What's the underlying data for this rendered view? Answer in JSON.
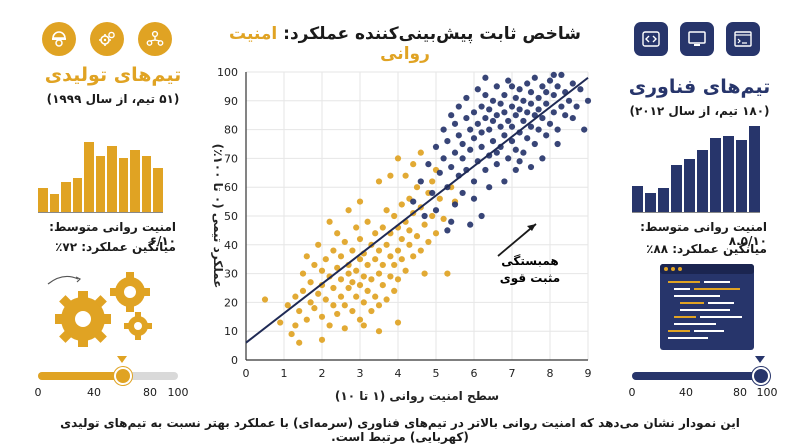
{
  "title": {
    "main": "شاخص ثابت پیش‌بینی‌کننده عملکرد:",
    "accent": "امنیت روانی"
  },
  "left_panel": {
    "team_title": "تیم‌های تولیدی",
    "team_sub": "(۵۱ تیم، از سال ۱۹۹۹)",
    "stat_avg": "امنیت روانی متوسط: ۶/۱۰",
    "stat_perf": "میانگین عملکرد: ۷۲٪",
    "icons": [
      "worker-icon",
      "gears-icon",
      "team-network-icon"
    ],
    "histogram": [
      0.3,
      0.22,
      0.38,
      0.42,
      0.88,
      0.7,
      0.82,
      0.68,
      0.78,
      0.7,
      0.55
    ],
    "slider": {
      "value": 60,
      "ticks": [
        "0",
        "40",
        "80",
        "100"
      ]
    },
    "color": "#e0a323"
  },
  "right_panel": {
    "team_title": "تیم‌های فناوری",
    "team_sub": "(۱۸۰ تیم، از سال ۲۰۱۲)",
    "stat_avg": "امنیت روانی متوسط: ۸.۵/۱۰",
    "stat_perf": "میانگین عملکرد: ۸۸٪",
    "icons": [
      "code-icon",
      "monitor-icon",
      "terminal-icon"
    ],
    "histogram": [
      0.3,
      0.22,
      0.28,
      0.55,
      0.62,
      0.72,
      0.86,
      0.88,
      0.84,
      1.0
    ],
    "slider": {
      "value": 95,
      "ticks": [
        "0",
        "40",
        "80",
        "100"
      ]
    },
    "color": "#27356b"
  },
  "annotation": {
    "line1": "همبستگی",
    "line2": "مثبت قوی"
  },
  "footer": "این نمودار نشان می‌دهد که امنیت روانی بالاتر در تیم‌های فناوری (سرمه‌ای) با عملکرد بهتر نسبت به تیم‌های تولیدی (کهربایی) مرتبط است.",
  "chart_data": {
    "type": "scatter",
    "xlabel": "سطح امنیت روانی (۱ تا ۱۰)",
    "ylabel": "عملکرد تیمی (۰ تا ۱۰۰٪)",
    "xlim": [
      0,
      9
    ],
    "ylim": [
      0,
      100
    ],
    "x_ticks": [
      0,
      1,
      2,
      3,
      4,
      5,
      6,
      7,
      8,
      9
    ],
    "y_ticks": [
      0,
      10,
      20,
      30,
      40,
      50,
      60,
      70,
      80,
      90,
      100
    ],
    "trendline": {
      "x": [
        0,
        9
      ],
      "y": [
        6,
        98
      ]
    },
    "series": [
      {
        "color": "#e0a323",
        "points": [
          [
            0.5,
            21
          ],
          [
            0.9,
            13
          ],
          [
            1.1,
            19
          ],
          [
            1.2,
            9
          ],
          [
            1.3,
            12
          ],
          [
            1.3,
            22
          ],
          [
            1.4,
            17
          ],
          [
            1.5,
            30
          ],
          [
            1.5,
            24
          ],
          [
            1.6,
            14
          ],
          [
            1.6,
            36
          ],
          [
            1.7,
            20
          ],
          [
            1.7,
            27
          ],
          [
            1.8,
            18
          ],
          [
            1.8,
            33
          ],
          [
            1.9,
            23
          ],
          [
            1.9,
            40
          ],
          [
            2.0,
            15
          ],
          [
            2.0,
            26
          ],
          [
            2.0,
            31
          ],
          [
            2.1,
            21
          ],
          [
            2.1,
            35
          ],
          [
            2.2,
            12
          ],
          [
            2.2,
            29
          ],
          [
            2.3,
            19
          ],
          [
            2.3,
            38
          ],
          [
            2.3,
            25
          ],
          [
            2.4,
            16
          ],
          [
            2.4,
            32
          ],
          [
            2.4,
            44
          ],
          [
            2.5,
            22
          ],
          [
            2.5,
            28
          ],
          [
            2.5,
            36
          ],
          [
            2.6,
            11
          ],
          [
            2.6,
            19
          ],
          [
            2.6,
            41
          ],
          [
            2.7,
            25
          ],
          [
            2.7,
            33
          ],
          [
            2.7,
            30
          ],
          [
            2.8,
            17
          ],
          [
            2.8,
            27
          ],
          [
            2.8,
            38
          ],
          [
            2.9,
            22
          ],
          [
            2.9,
            46
          ],
          [
            2.9,
            31
          ],
          [
            3.0,
            14
          ],
          [
            3.0,
            26
          ],
          [
            3.0,
            35
          ],
          [
            3.0,
            42
          ],
          [
            3.1,
            20
          ],
          [
            3.1,
            29
          ],
          [
            3.1,
            37
          ],
          [
            3.2,
            24
          ],
          [
            3.2,
            33
          ],
          [
            3.2,
            48
          ],
          [
            3.3,
            17
          ],
          [
            3.3,
            28
          ],
          [
            3.3,
            40
          ],
          [
            3.4,
            22
          ],
          [
            3.4,
            35
          ],
          [
            3.4,
            44
          ],
          [
            3.5,
            19
          ],
          [
            3.5,
            30
          ],
          [
            3.5,
            38
          ],
          [
            3.6,
            26
          ],
          [
            3.6,
            46
          ],
          [
            3.6,
            33
          ],
          [
            3.7,
            21
          ],
          [
            3.7,
            40
          ],
          [
            3.7,
            52
          ],
          [
            3.8,
            29
          ],
          [
            3.8,
            36
          ],
          [
            3.8,
            44
          ],
          [
            3.9,
            24
          ],
          [
            3.9,
            50
          ],
          [
            3.9,
            33
          ],
          [
            4.0,
            38
          ],
          [
            4.0,
            46
          ],
          [
            4.0,
            28
          ],
          [
            4.1,
            42
          ],
          [
            4.1,
            54
          ],
          [
            4.1,
            35
          ],
          [
            4.2,
            48
          ],
          [
            4.2,
            31
          ],
          [
            4.3,
            40
          ],
          [
            4.3,
            56
          ],
          [
            4.3,
            45
          ],
          [
            4.4,
            36
          ],
          [
            4.4,
            51
          ],
          [
            4.5,
            43
          ],
          [
            4.5,
            60
          ],
          [
            4.6,
            38
          ],
          [
            4.6,
            53
          ],
          [
            4.7,
            47
          ],
          [
            4.7,
            30
          ],
          [
            4.8,
            58
          ],
          [
            4.8,
            41
          ],
          [
            4.9,
            50
          ],
          [
            4.9,
            62
          ],
          [
            5.0,
            44
          ],
          [
            5.1,
            56
          ],
          [
            5.2,
            49
          ],
          [
            5.3,
            30
          ],
          [
            5.4,
            60
          ],
          [
            5.5,
            55
          ],
          [
            4.2,
            64
          ],
          [
            4.0,
            70
          ],
          [
            3.5,
            62
          ],
          [
            3.0,
            55
          ],
          [
            2.2,
            48
          ],
          [
            4.4,
            68
          ],
          [
            5.0,
            66
          ],
          [
            4.6,
            72
          ],
          [
            3.8,
            64
          ],
          [
            2.7,
            52
          ],
          [
            1.4,
            6
          ],
          [
            2.0,
            7
          ],
          [
            3.5,
            10
          ],
          [
            4.0,
            13
          ],
          [
            3.1,
            12
          ]
        ]
      },
      {
        "color": "#27356b",
        "points": [
          [
            4.4,
            55
          ],
          [
            4.6,
            62
          ],
          [
            4.8,
            68
          ],
          [
            4.9,
            58
          ],
          [
            5.0,
            74
          ],
          [
            5.1,
            65
          ],
          [
            5.2,
            80
          ],
          [
            5.2,
            70
          ],
          [
            5.3,
            60
          ],
          [
            5.3,
            76
          ],
          [
            5.4,
            85
          ],
          [
            5.4,
            67
          ],
          [
            5.5,
            72
          ],
          [
            5.5,
            82
          ],
          [
            5.6,
            64
          ],
          [
            5.6,
            78
          ],
          [
            5.6,
            88
          ],
          [
            5.7,
            70
          ],
          [
            5.7,
            75
          ],
          [
            5.8,
            84
          ],
          [
            5.8,
            66
          ],
          [
            5.8,
            91
          ],
          [
            5.9,
            73
          ],
          [
            5.9,
            80
          ],
          [
            6.0,
            62
          ],
          [
            6.0,
            77
          ],
          [
            6.0,
            86
          ],
          [
            6.1,
            69
          ],
          [
            6.1,
            82
          ],
          [
            6.1,
            94
          ],
          [
            6.2,
            74
          ],
          [
            6.2,
            88
          ],
          [
            6.2,
            79
          ],
          [
            6.3,
            66
          ],
          [
            6.3,
            84
          ],
          [
            6.3,
            92
          ],
          [
            6.4,
            71
          ],
          [
            6.4,
            80
          ],
          [
            6.4,
            87
          ],
          [
            6.5,
            76
          ],
          [
            6.5,
            90
          ],
          [
            6.5,
            83
          ],
          [
            6.6,
            68
          ],
          [
            6.6,
            85
          ],
          [
            6.6,
            95
          ],
          [
            6.7,
            74
          ],
          [
            6.7,
            81
          ],
          [
            6.7,
            89
          ],
          [
            6.8,
            78
          ],
          [
            6.8,
            92
          ],
          [
            6.8,
            86
          ],
          [
            6.9,
            70
          ],
          [
            6.9,
            83
          ],
          [
            6.9,
            97
          ],
          [
            7.0,
            76
          ],
          [
            7.0,
            88
          ],
          [
            7.0,
            81
          ],
          [
            7.1,
            73
          ],
          [
            7.1,
            91
          ],
          [
            7.1,
            85
          ],
          [
            7.2,
            79
          ],
          [
            7.2,
            94
          ],
          [
            7.2,
            87
          ],
          [
            7.3,
            72
          ],
          [
            7.3,
            83
          ],
          [
            7.3,
            90
          ],
          [
            7.4,
            77
          ],
          [
            7.4,
            96
          ],
          [
            7.4,
            86
          ],
          [
            7.5,
            81
          ],
          [
            7.5,
            89
          ],
          [
            7.5,
            93
          ],
          [
            7.6,
            75
          ],
          [
            7.6,
            85
          ],
          [
            7.6,
            98
          ],
          [
            7.7,
            80
          ],
          [
            7.7,
            91
          ],
          [
            7.7,
            87
          ],
          [
            7.8,
            84
          ],
          [
            7.8,
            95
          ],
          [
            7.9,
            78
          ],
          [
            7.9,
            89
          ],
          [
            7.9,
            93
          ],
          [
            8.0,
            82
          ],
          [
            8.0,
            97
          ],
          [
            8.1,
            86
          ],
          [
            8.1,
            92
          ],
          [
            8.2,
            80
          ],
          [
            8.2,
            95
          ],
          [
            8.3,
            88
          ],
          [
            8.3,
            99
          ],
          [
            8.4,
            85
          ],
          [
            8.4,
            93
          ],
          [
            8.5,
            90
          ],
          [
            8.6,
            96
          ],
          [
            8.7,
            88
          ],
          [
            8.8,
            94
          ],
          [
            9.0,
            90
          ],
          [
            8.2,
            75
          ],
          [
            7.8,
            70
          ],
          [
            6.0,
            56
          ],
          [
            5.7,
            58
          ],
          [
            6.4,
            60
          ],
          [
            7.1,
            66
          ],
          [
            5.4,
            48
          ],
          [
            5.5,
            54
          ],
          [
            6.2,
            50
          ],
          [
            5.9,
            47
          ],
          [
            7.5,
            67
          ],
          [
            6.8,
            62
          ],
          [
            5.0,
            52
          ],
          [
            4.7,
            50
          ],
          [
            5.3,
            45
          ],
          [
            6.6,
            72
          ],
          [
            7.2,
            69
          ],
          [
            8.6,
            84
          ],
          [
            8.9,
            80
          ],
          [
            7.0,
            95
          ],
          [
            6.3,
            98
          ],
          [
            8.1,
            99
          ]
        ]
      }
    ]
  }
}
